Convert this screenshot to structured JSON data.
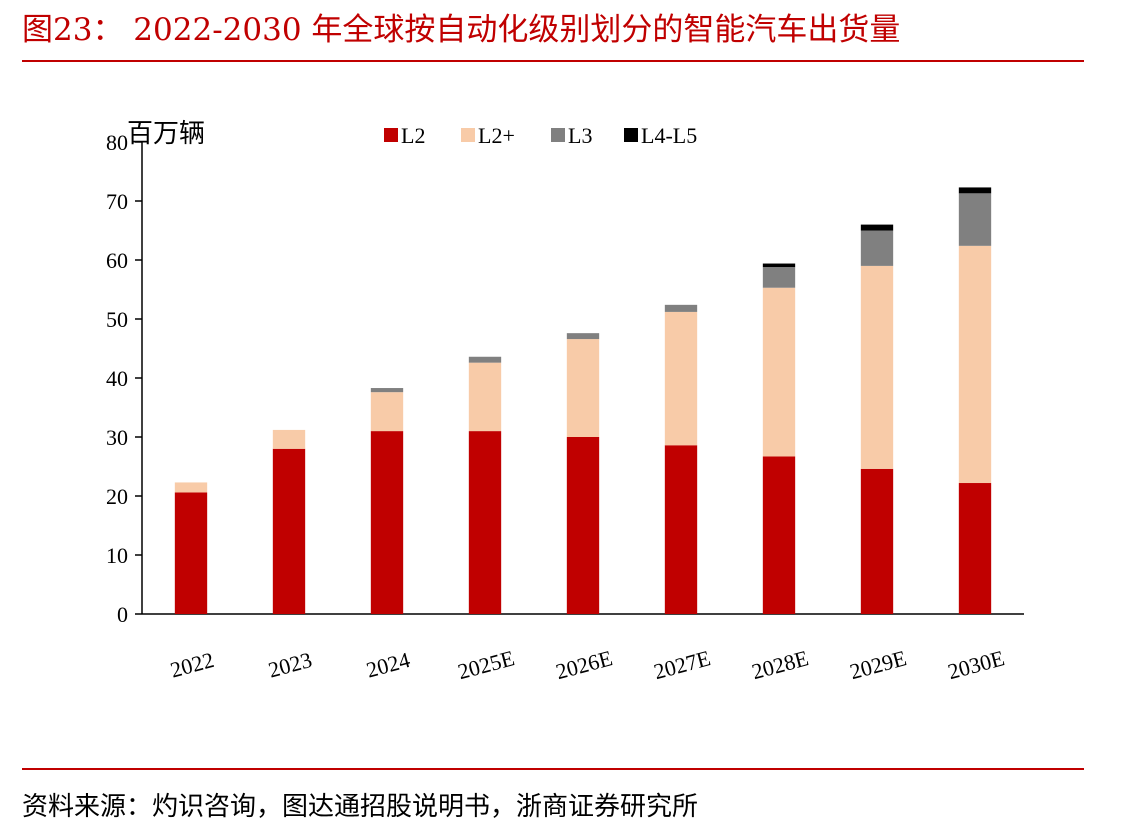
{
  "figure": {
    "title": "图23： 2022-2030 年全球按自动化级别划分的智能汽车出货量",
    "source": "资料来源：灼识咨询，图达通招股说明书，浙商证券研究所"
  },
  "colors": {
    "accent": "#c00000",
    "series": [
      "#c00000",
      "#f8cba8",
      "#808080",
      "#000000"
    ]
  },
  "chart_data": {
    "type": "bar",
    "stacked": true,
    "unit": "百万辆",
    "categories": [
      "2022",
      "2023",
      "2024",
      "2025E",
      "2026E",
      "2027E",
      "2028E",
      "2029E",
      "2030E"
    ],
    "series": [
      {
        "name": "L2",
        "values": [
          20.6,
          28.0,
          31.0,
          31.0,
          30.0,
          28.6,
          26.7,
          24.6,
          22.2
        ]
      },
      {
        "name": "L2+",
        "values": [
          1.7,
          3.2,
          6.6,
          11.6,
          16.6,
          22.6,
          28.6,
          34.4,
          40.2
        ]
      },
      {
        "name": "L3",
        "values": [
          0.0,
          0.0,
          0.7,
          1.0,
          1.0,
          1.2,
          3.5,
          6.0,
          8.9
        ]
      },
      {
        "name": "L4-L5",
        "values": [
          0.0,
          0.0,
          0.0,
          0.0,
          0.0,
          0.0,
          0.6,
          1.0,
          1.0
        ]
      }
    ],
    "ylim": [
      0,
      80
    ],
    "yticks": [
      0,
      10,
      20,
      30,
      40,
      50,
      60,
      70,
      80
    ],
    "xlabel": "",
    "ylabel": "",
    "grid": false,
    "legend_position": "top-center"
  }
}
